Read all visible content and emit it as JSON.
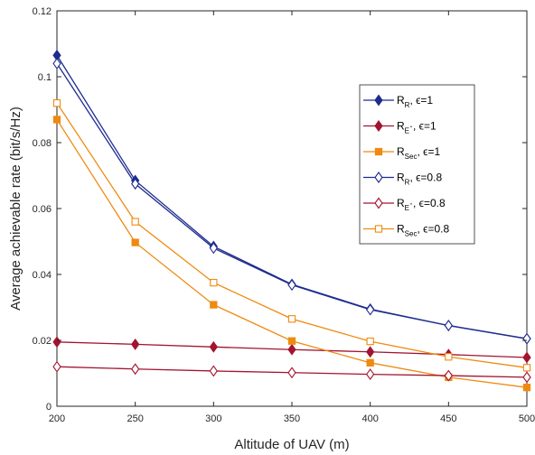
{
  "chart_data": {
    "type": "line",
    "xlabel": "Altitude of UAV (m)",
    "ylabel": "Average achievable rate (bit/s/Hz)",
    "xlim": [
      200,
      500
    ],
    "ylim": [
      0,
      0.12
    ],
    "xticks": [
      "200",
      "250",
      "300",
      "350",
      "400",
      "450",
      "500"
    ],
    "yticks": [
      "0",
      "0.02",
      "0.04",
      "0.06",
      "0.08",
      "0.1",
      "0.12"
    ],
    "legend_position": "right",
    "grid": false,
    "x": [
      200,
      250,
      300,
      350,
      400,
      450,
      500
    ],
    "series": [
      {
        "key": "rr1",
        "sym": "R",
        "sub": "R",
        "eps": ", ϵ=1",
        "color": "#1f2c8f",
        "marker": "diamond",
        "filled": true,
        "values": [
          0.1065,
          0.0685,
          0.0485,
          0.037,
          0.0295,
          0.0245,
          0.0205
        ]
      },
      {
        "key": "re1",
        "sym": "R",
        "sub": "E",
        "dot": "·",
        "eps": ", ϵ=1",
        "color": "#a2142f",
        "marker": "diamond",
        "filled": true,
        "values": [
          0.0195,
          0.0188,
          0.018,
          0.0172,
          0.0165,
          0.0157,
          0.0148
        ]
      },
      {
        "key": "rs1",
        "sym": "R",
        "sub": "Sec",
        "eps": ", ϵ=1",
        "color": "#ef8a10",
        "marker": "square",
        "filled": true,
        "values": [
          0.087,
          0.0497,
          0.0308,
          0.0198,
          0.0132,
          0.0088,
          0.0057
        ]
      },
      {
        "key": "rr08",
        "sym": "R",
        "sub": "R",
        "eps": ", ϵ=0.8",
        "color": "#1f2c8f",
        "marker": "diamond",
        "filled": false,
        "values": [
          0.104,
          0.0675,
          0.048,
          0.0368,
          0.0293,
          0.0245,
          0.0205
        ]
      },
      {
        "key": "re08",
        "sym": "R",
        "sub": "E",
        "dot": "·",
        "eps": ", ϵ=0.8",
        "color": "#a2142f",
        "marker": "diamond",
        "filled": false,
        "values": [
          0.012,
          0.0113,
          0.0107,
          0.0102,
          0.0097,
          0.0093,
          0.0088
        ]
      },
      {
        "key": "rs08",
        "sym": "R",
        "sub": "Sec",
        "eps": ", ϵ=0.8",
        "color": "#ef8a10",
        "marker": "square",
        "filled": false,
        "values": [
          0.092,
          0.056,
          0.0375,
          0.0265,
          0.0197,
          0.015,
          0.0117
        ]
      }
    ]
  }
}
